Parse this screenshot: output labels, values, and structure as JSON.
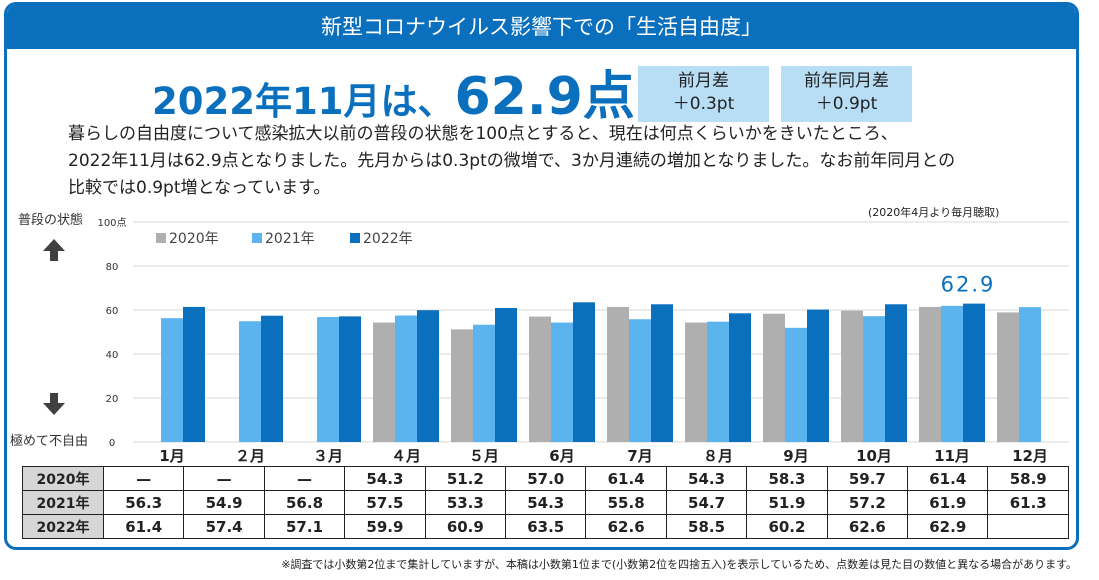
{
  "banner_title": "新型コロナウイルス影響下での「生活自由度」",
  "headline": {
    "prefix": "2022年11月は、",
    "value": "62.9点"
  },
  "diff_month": {
    "label": "前月差",
    "value": "＋0.3pt"
  },
  "diff_year": {
    "label": "前年同月差",
    "value": "＋0.9pt"
  },
  "description": [
    "暮らしの自由度について感染拡大以前の普段の状態を100点とすると、現在は何点くらいかをきいたところ、",
    "2022年11月は62.9点となりました。先月からは0.3ptの微増で、3か月連続の増加となりました。なお前年同月との",
    "比較では0.9pt増となっています。"
  ],
  "note_top": "(2020年4月より毎月聴取)",
  "side_label_top": "普段の状態",
  "side_label_bottom": "極めて不自由",
  "highlight_label": "62.9",
  "footnote": "※調査では小数第2位まで集計していますが、本稿は小数第1位まで(小数第2位を四捨五入)を表示しているため、点数差は見た目の数値と異なる場合があります。",
  "colors": {
    "accent": "#0a6fbd",
    "s2020": "#afafaf",
    "s2021": "#5cb4ef",
    "s2022": "#0a6fbd"
  },
  "chart_data": {
    "type": "bar",
    "categories": [
      "1月",
      "２月",
      "３月",
      "４月",
      "５月",
      "6月",
      "7月",
      "８月",
      "9月",
      "10月",
      "11月",
      "12月"
    ],
    "series": [
      {
        "name": "2020年",
        "values": [
          null,
          null,
          null,
          54.3,
          51.2,
          57.0,
          61.4,
          54.3,
          58.3,
          59.7,
          61.4,
          58.9
        ]
      },
      {
        "name": "2021年",
        "values": [
          56.3,
          54.9,
          56.8,
          57.5,
          53.3,
          54.3,
          55.8,
          54.7,
          51.9,
          57.2,
          61.9,
          61.3
        ]
      },
      {
        "name": "2022年",
        "values": [
          61.4,
          57.4,
          57.1,
          59.9,
          60.9,
          63.5,
          62.6,
          58.5,
          60.2,
          62.6,
          62.9,
          null
        ]
      }
    ],
    "yticks": [
      "100点",
      "80",
      "60",
      "40",
      "20",
      "0"
    ],
    "ylim": [
      0,
      100
    ],
    "grid": true,
    "legend_position": "top-left"
  },
  "table": {
    "rows": [
      {
        "label": "2020年",
        "cells": [
          "—",
          "—",
          "—",
          "54.3",
          "51.2",
          "57.0",
          "61.4",
          "54.3",
          "58.3",
          "59.7",
          "61.4",
          "58.9"
        ]
      },
      {
        "label": "2021年",
        "cells": [
          "56.3",
          "54.9",
          "56.8",
          "57.5",
          "53.3",
          "54.3",
          "55.8",
          "54.7",
          "51.9",
          "57.2",
          "61.9",
          "61.3"
        ]
      },
      {
        "label": "2022年",
        "cells": [
          "61.4",
          "57.4",
          "57.1",
          "59.9",
          "60.9",
          "63.5",
          "62.6",
          "58.5",
          "60.2",
          "62.6",
          "62.9",
          ""
        ]
      }
    ]
  }
}
